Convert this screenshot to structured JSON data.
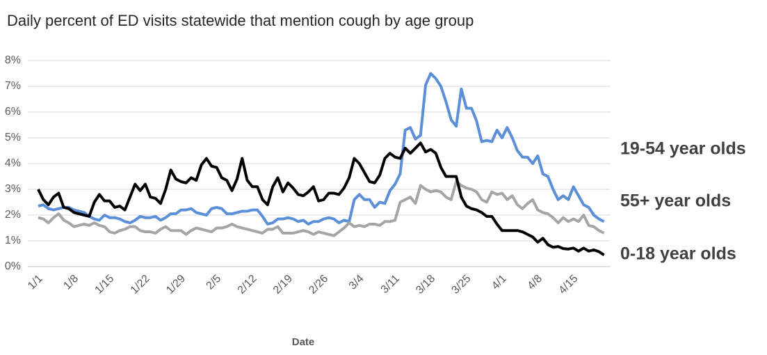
{
  "chart_data": {
    "type": "line",
    "title": "Daily percent of ED visits statewide that mention cough by age group",
    "x_label": "Date",
    "categories": [
      "1/1",
      null,
      null,
      null,
      null,
      null,
      null,
      "1/8",
      null,
      null,
      null,
      null,
      null,
      null,
      "1/15",
      null,
      null,
      null,
      null,
      null,
      null,
      "1/22",
      null,
      null,
      null,
      null,
      null,
      null,
      "1/29",
      null,
      null,
      null,
      null,
      null,
      null,
      "2/5",
      null,
      null,
      null,
      null,
      null,
      null,
      "2/12",
      null,
      null,
      null,
      null,
      null,
      null,
      "2/19",
      null,
      null,
      null,
      null,
      null,
      null,
      "2/26",
      null,
      null,
      null,
      null,
      null,
      null,
      "3/4",
      null,
      null,
      null,
      null,
      null,
      null,
      "3/11",
      null,
      null,
      null,
      null,
      null,
      null,
      "3/18",
      null,
      null,
      null,
      null,
      null,
      null,
      "3/25",
      null,
      null,
      null,
      null,
      null,
      null,
      "4/1",
      null,
      null,
      null,
      null,
      null,
      null,
      "4/8",
      null,
      null,
      null,
      null,
      null,
      null,
      "4/15",
      null,
      null,
      null,
      null,
      null,
      null
    ],
    "ylim": [
      0,
      8
    ],
    "yticks": [
      {
        "value": 0,
        "label": "0%"
      },
      {
        "value": 1,
        "label": "1%"
      },
      {
        "value": 2,
        "label": "2%"
      },
      {
        "value": 3,
        "label": "3%"
      },
      {
        "value": 4,
        "label": "4%"
      },
      {
        "value": 5,
        "label": "5%"
      },
      {
        "value": 6,
        "label": "6%"
      },
      {
        "value": 7,
        "label": "7%"
      },
      {
        "value": 8,
        "label": "8%"
      }
    ],
    "grid": true,
    "series": [
      {
        "name": "19-54 year olds",
        "color": "#5b8fd7",
        "values": [
          2.35,
          2.4,
          2.25,
          2.2,
          2.25,
          2.3,
          2.3,
          2.2,
          2.15,
          2.1,
          1.95,
          1.85,
          1.8,
          2.0,
          1.9,
          1.9,
          1.85,
          1.75,
          1.7,
          1.8,
          1.95,
          1.9,
          1.9,
          1.95,
          1.8,
          1.9,
          2.05,
          2.05,
          2.2,
          2.2,
          2.25,
          2.1,
          2.05,
          2.0,
          2.25,
          2.3,
          2.25,
          2.05,
          2.05,
          2.1,
          2.15,
          2.15,
          2.2,
          2.2,
          1.95,
          1.65,
          1.7,
          1.85,
          1.85,
          1.9,
          1.85,
          1.75,
          1.8,
          1.65,
          1.75,
          1.75,
          1.85,
          1.9,
          1.85,
          1.7,
          1.8,
          1.75,
          2.6,
          2.8,
          2.6,
          2.6,
          2.3,
          2.5,
          2.45,
          2.95,
          3.2,
          3.6,
          5.3,
          5.4,
          4.95,
          5.1,
          7.05,
          7.5,
          7.3,
          7.0,
          6.4,
          5.7,
          5.45,
          6.9,
          6.15,
          6.15,
          5.65,
          4.85,
          4.9,
          4.85,
          5.3,
          5.0,
          5.4,
          5.0,
          4.5,
          4.25,
          4.25,
          4.0,
          4.3,
          3.6,
          3.5,
          3.0,
          2.6,
          2.75,
          2.6,
          3.1,
          2.75,
          2.4,
          2.3,
          2.0,
          1.85,
          1.75
        ]
      },
      {
        "name": "55+ year olds",
        "color": "#a5a5a5",
        "values": [
          1.9,
          1.85,
          1.7,
          1.9,
          2.05,
          1.8,
          1.7,
          1.55,
          1.6,
          1.65,
          1.6,
          1.7,
          1.6,
          1.55,
          1.35,
          1.3,
          1.4,
          1.45,
          1.55,
          1.55,
          1.4,
          1.35,
          1.35,
          1.3,
          1.45,
          1.55,
          1.4,
          1.4,
          1.4,
          1.25,
          1.4,
          1.5,
          1.45,
          1.4,
          1.35,
          1.5,
          1.5,
          1.55,
          1.65,
          1.55,
          1.5,
          1.45,
          1.4,
          1.35,
          1.3,
          1.45,
          1.45,
          1.55,
          1.3,
          1.3,
          1.3,
          1.35,
          1.4,
          1.35,
          1.25,
          1.35,
          1.3,
          1.25,
          1.2,
          1.35,
          1.5,
          1.7,
          1.55,
          1.6,
          1.55,
          1.65,
          1.65,
          1.6,
          1.75,
          1.75,
          1.8,
          2.5,
          2.6,
          2.7,
          2.45,
          3.15,
          3.0,
          2.9,
          2.95,
          2.9,
          2.7,
          2.6,
          3.3,
          3.15,
          3.05,
          3.0,
          2.9,
          2.6,
          2.5,
          2.9,
          2.8,
          2.85,
          2.6,
          2.75,
          2.4,
          2.25,
          2.45,
          2.6,
          2.2,
          2.1,
          2.05,
          1.9,
          1.7,
          1.9,
          1.75,
          1.85,
          1.75,
          2.0,
          1.6,
          1.55,
          1.4,
          1.3
        ]
      },
      {
        "name": "0-18 year olds",
        "color": "#000000",
        "values": [
          3.0,
          2.6,
          2.4,
          2.7,
          2.85,
          2.3,
          2.25,
          2.1,
          2.05,
          2.0,
          1.95,
          2.5,
          2.8,
          2.55,
          2.55,
          2.3,
          2.35,
          2.2,
          2.7,
          3.2,
          2.95,
          3.2,
          2.7,
          2.65,
          2.45,
          3.0,
          3.75,
          3.4,
          3.3,
          3.25,
          3.45,
          3.35,
          3.95,
          4.2,
          3.9,
          3.85,
          3.45,
          3.35,
          2.95,
          3.4,
          4.2,
          3.35,
          3.1,
          3.1,
          2.6,
          2.4,
          3.1,
          3.45,
          2.9,
          3.25,
          3.05,
          2.8,
          2.75,
          2.9,
          3.1,
          2.55,
          2.6,
          2.85,
          2.85,
          2.8,
          3.05,
          3.45,
          4.2,
          4.0,
          3.65,
          3.3,
          3.25,
          3.55,
          4.2,
          4.4,
          4.25,
          4.2,
          4.6,
          4.4,
          4.6,
          4.8,
          4.45,
          4.55,
          4.4,
          3.85,
          3.5,
          3.5,
          3.5,
          2.7,
          2.35,
          2.25,
          2.2,
          2.1,
          1.95,
          1.95,
          1.65,
          1.4,
          1.4,
          1.4,
          1.4,
          1.35,
          1.25,
          1.15,
          0.95,
          1.1,
          0.85,
          0.75,
          0.78,
          0.7,
          0.68,
          0.72,
          0.6,
          0.72,
          0.6,
          0.65,
          0.58,
          0.45
        ]
      }
    ]
  }
}
